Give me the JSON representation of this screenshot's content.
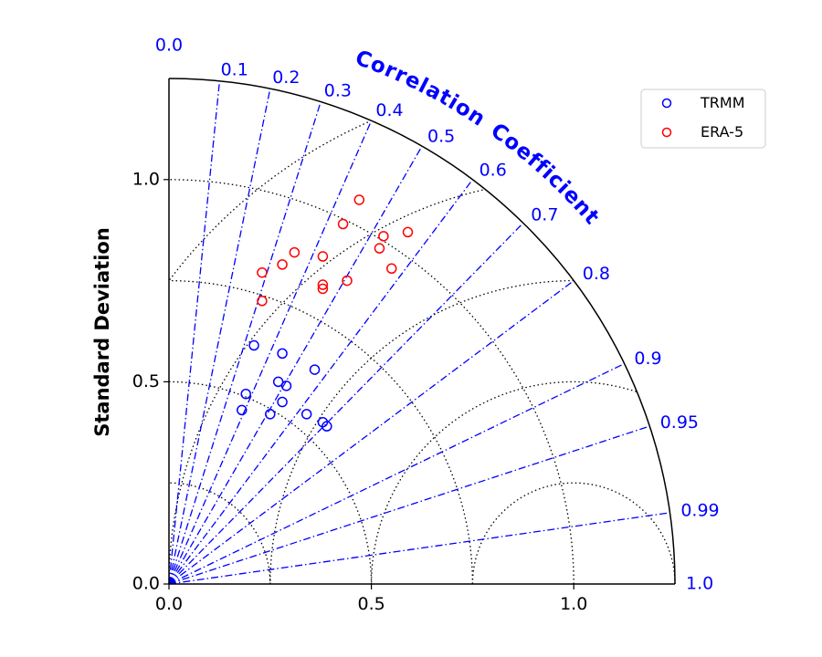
{
  "chart_data": {
    "type": "scatter",
    "subtype": "taylor-diagram",
    "ylabel": "Standard Deviation",
    "arc_label": "Correlation Coefficient",
    "std_max": 1.25,
    "std_ticks": [
      0.0,
      0.5,
      1.0
    ],
    "std_tick_labels": [
      "0.0",
      "0.5",
      "1.0"
    ],
    "std_dotted_arcs": [
      0.25,
      0.5,
      0.75,
      1.0
    ],
    "rms_dotted_arcs": [
      0.25,
      0.5,
      0.75,
      1.0,
      1.25
    ],
    "correlation_ticks": [
      0.0,
      0.1,
      0.2,
      0.3,
      0.4,
      0.5,
      0.6,
      0.7,
      0.8,
      0.9,
      0.95,
      0.99,
      1.0
    ],
    "correlation_tick_labels": [
      "0.0",
      "0.1",
      "0.2",
      "0.3",
      "0.4",
      "0.5",
      "0.6",
      "0.7",
      "0.8",
      "0.9",
      "0.95",
      "0.99",
      "1.0"
    ],
    "legend_position": "top-right",
    "series": [
      {
        "name": "TRMM",
        "color": "#0000ff",
        "marker": "open-circle",
        "points": [
          {
            "x": 0.21,
            "y": 0.59
          },
          {
            "x": 0.28,
            "y": 0.57
          },
          {
            "x": 0.36,
            "y": 0.53
          },
          {
            "x": 0.27,
            "y": 0.5
          },
          {
            "x": 0.29,
            "y": 0.49
          },
          {
            "x": 0.19,
            "y": 0.47
          },
          {
            "x": 0.28,
            "y": 0.45
          },
          {
            "x": 0.18,
            "y": 0.43
          },
          {
            "x": 0.25,
            "y": 0.42
          },
          {
            "x": 0.34,
            "y": 0.42
          },
          {
            "x": 0.38,
            "y": 0.4
          },
          {
            "x": 0.39,
            "y": 0.39
          }
        ]
      },
      {
        "name": "ERA-5",
        "color": "#ff0000",
        "marker": "open-circle",
        "points": [
          {
            "x": 0.47,
            "y": 0.95
          },
          {
            "x": 0.43,
            "y": 0.89
          },
          {
            "x": 0.59,
            "y": 0.87
          },
          {
            "x": 0.53,
            "y": 0.86
          },
          {
            "x": 0.52,
            "y": 0.83
          },
          {
            "x": 0.31,
            "y": 0.82
          },
          {
            "x": 0.38,
            "y": 0.81
          },
          {
            "x": 0.28,
            "y": 0.79
          },
          {
            "x": 0.55,
            "y": 0.78
          },
          {
            "x": 0.23,
            "y": 0.77
          },
          {
            "x": 0.38,
            "y": 0.74
          },
          {
            "x": 0.44,
            "y": 0.75
          },
          {
            "x": 0.38,
            "y": 0.73
          },
          {
            "x": 0.23,
            "y": 0.7
          }
        ]
      }
    ]
  }
}
